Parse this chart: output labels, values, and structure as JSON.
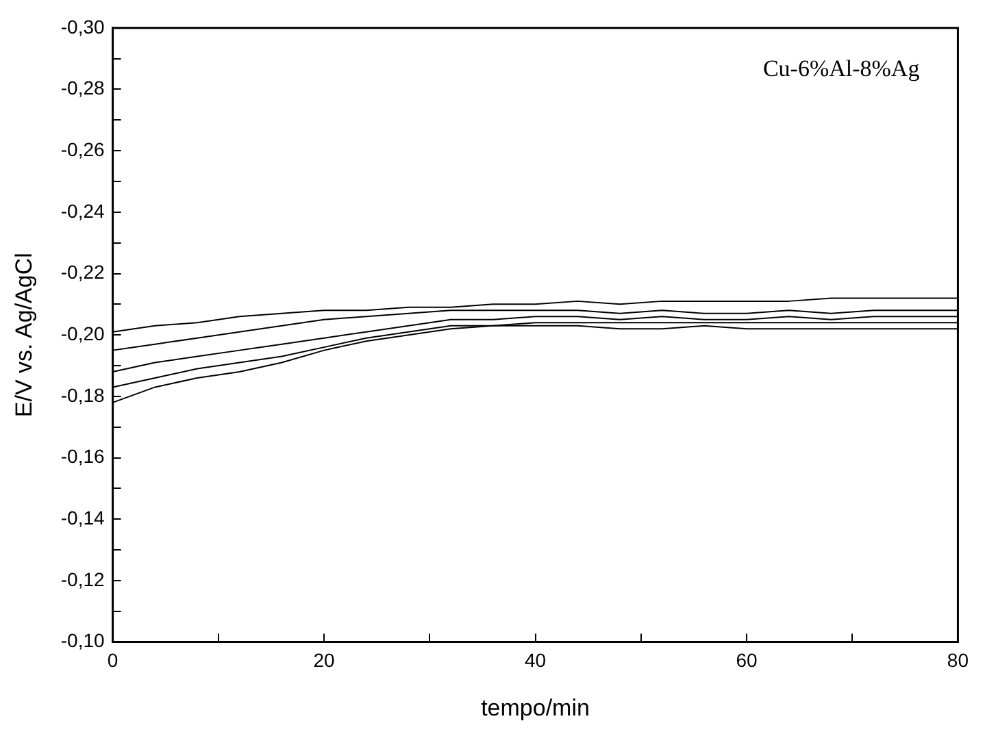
{
  "chart_data": {
    "type": "line",
    "xlabel": "tempo/min",
    "ylabel": "E/V vs. Ag/AgCl",
    "annotations": [
      "Cu-6%Al-8%Ag"
    ],
    "x": [
      0,
      4,
      8,
      12,
      16,
      20,
      24,
      28,
      32,
      36,
      40,
      44,
      48,
      52,
      56,
      60,
      64,
      68,
      72,
      76,
      80
    ],
    "series": [
      {
        "color": "#000000",
        "values": [
          -0.201,
          -0.203,
          -0.204,
          -0.206,
          -0.207,
          -0.208,
          -0.208,
          -0.209,
          -0.209,
          -0.21,
          -0.21,
          -0.211,
          -0.21,
          -0.211,
          -0.211,
          -0.211,
          -0.211,
          -0.212,
          -0.212,
          -0.212,
          -0.212
        ]
      },
      {
        "color": "#000000",
        "values": [
          -0.195,
          -0.197,
          -0.199,
          -0.201,
          -0.203,
          -0.205,
          -0.206,
          -0.207,
          -0.208,
          -0.208,
          -0.208,
          -0.208,
          -0.207,
          -0.208,
          -0.207,
          -0.207,
          -0.208,
          -0.207,
          -0.208,
          -0.208,
          -0.208
        ]
      },
      {
        "color": "#000000",
        "values": [
          -0.188,
          -0.191,
          -0.193,
          -0.195,
          -0.197,
          -0.199,
          -0.201,
          -0.203,
          -0.205,
          -0.205,
          -0.206,
          -0.206,
          -0.205,
          -0.206,
          -0.205,
          -0.205,
          -0.206,
          -0.205,
          -0.206,
          -0.206,
          -0.206
        ]
      },
      {
        "color": "#000000",
        "values": [
          -0.183,
          -0.186,
          -0.189,
          -0.191,
          -0.193,
          -0.196,
          -0.199,
          -0.201,
          -0.203,
          -0.203,
          -0.204,
          -0.204,
          -0.204,
          -0.204,
          -0.204,
          -0.204,
          -0.204,
          -0.204,
          -0.204,
          -0.204,
          -0.204
        ]
      },
      {
        "color": "#000000",
        "values": [
          -0.178,
          -0.183,
          -0.186,
          -0.188,
          -0.191,
          -0.195,
          -0.198,
          -0.2,
          -0.202,
          -0.203,
          -0.203,
          -0.203,
          -0.202,
          -0.202,
          -0.203,
          -0.202,
          -0.202,
          -0.202,
          -0.202,
          -0.202,
          -0.202
        ]
      }
    ],
    "xlim": [
      0,
      80
    ],
    "xticks": [
      0,
      {
        "value": 10,
        "label": null
      },
      20,
      {
        "value": 30,
        "label": null
      },
      40,
      {
        "value": 50,
        "label": null
      },
      60,
      {
        "value": 70,
        "label": null
      },
      80
    ],
    "ylim": [
      -0.1,
      -0.3
    ],
    "yticks": [
      {
        "value": -0.1,
        "label": "-0,10"
      },
      {
        "value": -0.11,
        "label": null
      },
      {
        "value": -0.12,
        "label": "-0,12"
      },
      {
        "value": -0.13,
        "label": null
      },
      {
        "value": -0.14,
        "label": "-0,14"
      },
      {
        "value": -0.15,
        "label": null
      },
      {
        "value": -0.16,
        "label": "-0,16"
      },
      {
        "value": -0.17,
        "label": null
      },
      {
        "value": -0.18,
        "label": "-0,18"
      },
      {
        "value": -0.19,
        "label": null
      },
      {
        "value": -0.2,
        "label": "-0,20"
      },
      {
        "value": -0.21,
        "label": null
      },
      {
        "value": -0.22,
        "label": "-0,22"
      },
      {
        "value": -0.23,
        "label": null
      },
      {
        "value": -0.24,
        "label": "-0,24"
      },
      {
        "value": -0.25,
        "label": null
      },
      {
        "value": -0.26,
        "label": "-0,26"
      },
      {
        "value": -0.27,
        "label": null
      },
      {
        "value": -0.28,
        "label": "-0,28"
      },
      {
        "value": -0.29,
        "label": null
      },
      {
        "value": -0.3,
        "label": "-0,30"
      }
    ],
    "grid": false,
    "legend": false,
    "marker": "none",
    "line_style": "solid"
  }
}
